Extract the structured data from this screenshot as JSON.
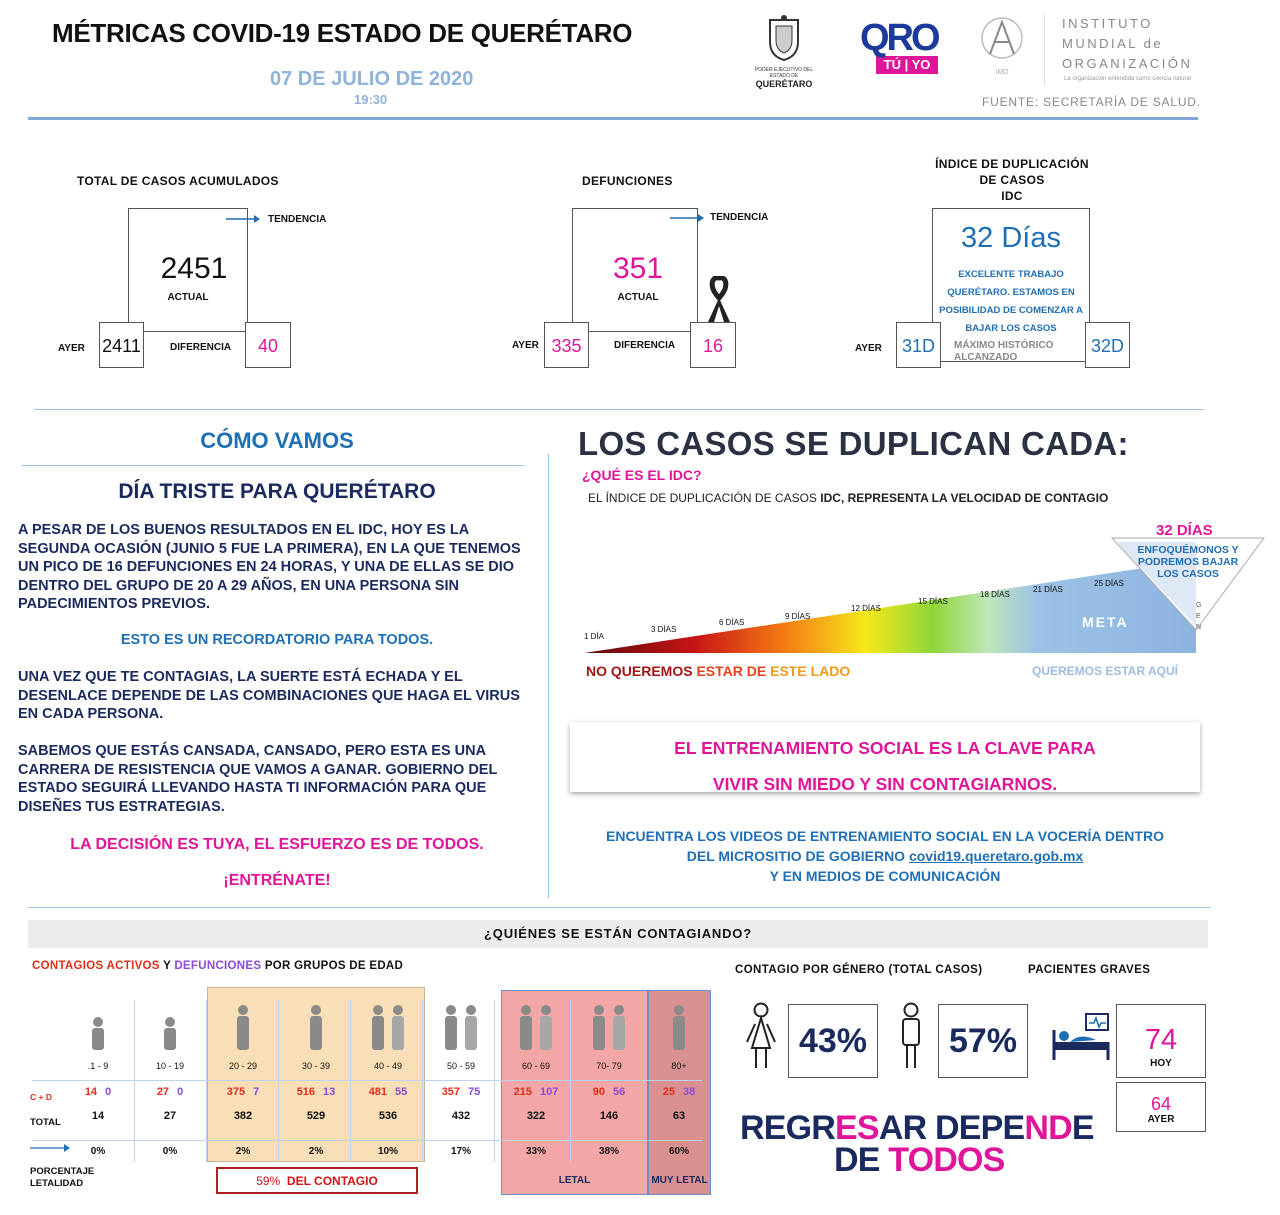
{
  "header": {
    "title": "MÉTRICAS COVID-19 ESTADO DE QUERÉTARO",
    "date": "07 DE JULIO DE 2020",
    "time": "19:30",
    "gov_logo_lines": [
      "PODER EJECUTIVO DEL ESTADO DE",
      "QUERÉTARO"
    ],
    "qro_logo_top": "QRO",
    "qro_logo_bottom": "TÚ | YO",
    "imo_logo_text": "IMO",
    "imo_name_lines": [
      "INSTITUTO",
      "MUNDIAL de",
      "ORGANIZACIÓN"
    ],
    "imo_tagline": "La organización entendida como ciencia natural",
    "source": "FUENTE: SECRETARÍA DE SALUD."
  },
  "metrics": {
    "cases": {
      "title": "TOTAL DE CASOS ACUMULADOS",
      "trend_label": "TENDENCIA",
      "value": "2451",
      "value_label": "ACTUAL",
      "yesterday_label": "AYER",
      "yesterday": "2411",
      "diff_label": "DIFERENCIA",
      "diff": "40"
    },
    "deaths": {
      "title": "DEFUNCIONES",
      "trend_label": "TENDENCIA",
      "value": "351",
      "value_label": "ACTUAL",
      "yesterday_label": "AYER",
      "yesterday": "335",
      "diff_label": "DIFERENCIA",
      "diff": "16"
    },
    "idc": {
      "title_lines": [
        "ÍNDICE DE DUPLICACIÓN",
        "DE CASOS",
        "IDC"
      ],
      "value": "32 Días",
      "note_lines": [
        "EXCELENTE TRABAJO",
        "QUERÉTARO. ESTAMOS EN",
        "POSIBILIDAD DE COMENZAR A",
        "BAJAR LOS CASOS"
      ],
      "yesterday_label": "AYER",
      "yesterday": "31D",
      "max_label_lines": [
        "MÁXIMO HISTÓRICO",
        "ALCANZADO"
      ],
      "max": "32D"
    }
  },
  "como_vamos": {
    "heading": "CÓMO VAMOS",
    "subheading": "DÍA TRISTE PARA QUERÉTARO",
    "p1": "A PESAR DE LOS BUENOS RESULTADOS EN EL IDC, HOY ES LA SEGUNDA OCASIÓN (JUNIO 5 FUE LA PRIMERA), EN LA QUE TENEMOS UN PICO DE 16 DEFUNCIONES EN 24 HORAS, Y UNA DE ELLAS SE DIO DENTRO DEL GRUPO DE 20 A 29 AÑOS, EN UNA PERSONA SIN PADECIMIENTOS PREVIOS.",
    "reminder": "ESTO ES UN RECORDATORIO PARA TODOS.",
    "p2": "UNA VEZ QUE TE CONTAGIAS, LA SUERTE ESTÁ ECHADA Y EL DESENLACE DEPENDE DE LAS COMBINACIONES QUE HAGA EL VIRUS EN CADA PERSONA.",
    "p3": "SABEMOS QUE ESTÁS CANSADA, CANSADO, PERO ESTA ES UNA CARRERA DE RESISTENCIA QUE VAMOS A GANAR. GOBIERNO DEL ESTADO SEGUIRÁ LLEVANDO HASTA TI INFORMACIÓN PARA QUE DISEÑES TUS ESTRATEGIAS.",
    "decision": "LA DECISIÓN ES TUYA, EL ESFUERZO ES DE TODOS.",
    "train": "¡ENTRÉNATE!"
  },
  "duplicacion": {
    "heading": "LOS CASOS SE DUPLICAN CADA:",
    "question": "¿QUÉ ES EL IDC?",
    "definition_plain": "EL ÍNDICE DE DUPLICACIÓN DE CASOS ",
    "definition_bold": "IDC, REPRESENTA LA VELOCIDAD DE CONTAGIO",
    "days_labels": [
      "1 DÍA",
      "3 DÍAS",
      "6 DÍAS",
      "9 DÍAS",
      "12 DÍAS",
      "15 DÍAS",
      "18 DÍAS",
      "21 DÍAS",
      "25 DÍAS"
    ],
    "meta": "META",
    "current": "32 DÍAS",
    "callout_lines": [
      "ENFOQUÉMONOS Y",
      "PODREMOS BAJAR",
      "LOS CASOS"
    ],
    "side_text": "GEN",
    "bad_side": [
      "NO QUEREMOS",
      "ESTAR DE",
      "ESTE LADO"
    ],
    "good_side": "QUEREMOS ESTAR AQUÍ",
    "banner_lines": [
      "EL ENTRENAMIENTO SOCIAL ES LA CLAVE PARA",
      "VIVIR SIN MIEDO Y SIN CONTAGIARNOS."
    ],
    "videos_line1": "ENCUENTRA LOS VIDEOS DE ENTRENAMIENTO SOCIAL EN LA VOCERÍA  DENTRO",
    "videos_line2_prefix": "DEL MICROSITIO DE GOBIERNO ",
    "videos_link": "covid19.queretaro.gob.mx",
    "videos_line3": "Y EN MEDIOS DE COMUNICACIÓN"
  },
  "contagios": {
    "bar_title": "¿QUIÉNES SE ESTÁN CONTAGIANDO?",
    "legend_active": "CONTAGIOS ACTIVOS",
    "legend_and": " Y ",
    "legend_deaths": "DEFUNCIONES",
    "legend_rest": " POR GRUPOS DE EDAD",
    "row_cd": "C + D",
    "row_total": "TOTAL",
    "row_pct": "PORCENTAJE LETALIDAD",
    "groups": [
      {
        "range": ".1 - 9",
        "active": "14",
        "deaths": "0",
        "total": "14",
        "pct": "0%"
      },
      {
        "range": "10 - 19",
        "active": "27",
        "deaths": "0",
        "total": "27",
        "pct": "0%"
      },
      {
        "range": "20 - 29",
        "active": "375",
        "deaths": "7",
        "total": "382",
        "pct": "2%"
      },
      {
        "range": "30 - 39",
        "active": "516",
        "deaths": "13",
        "total": "529",
        "pct": "2%"
      },
      {
        "range": "40 - 49",
        "active": "481",
        "deaths": "55",
        "total": "536",
        "pct": "10%"
      },
      {
        "range": "50 - 59",
        "active": "357",
        "deaths": "75",
        "total": "432",
        "pct": "17%"
      },
      {
        "range": "60 - 69",
        "active": "215",
        "deaths": "107",
        "total": "322",
        "pct": "33%"
      },
      {
        "range": "70- 79",
        "active": "90",
        "deaths": "56",
        "total": "146",
        "pct": "38%"
      },
      {
        "range": "80+",
        "active": "25",
        "deaths": "38",
        "total": "63",
        "pct": "60%"
      }
    ],
    "contagio_pct": "59%",
    "contagio_label": "DEL CONTAGIO",
    "letal": "LETAL",
    "muy_letal": "MUY LETAL",
    "gender_title": "CONTAGIO POR GÉNERO (TOTAL CASOS)",
    "female_pct": "43%",
    "male_pct": "57%",
    "graves_title": "PACIENTES GRAVES",
    "graves_today": "74",
    "graves_today_label": "HOY",
    "graves_yesterday": "64",
    "graves_yesterday_label": "AYER",
    "slogan_line1": "REGRESAR DEPENDE",
    "slogan_line2": "DE TODOS"
  },
  "colors": {
    "navy": "#1b2a5e",
    "blue": "#1f6fb4",
    "magenta": "#e0169a",
    "purple": "#8b49d8",
    "red": "#e22c1a",
    "young_bg": "#f8dfb8",
    "old_bg": "#f3a6a6",
    "oldest_bg": "#d99090"
  }
}
